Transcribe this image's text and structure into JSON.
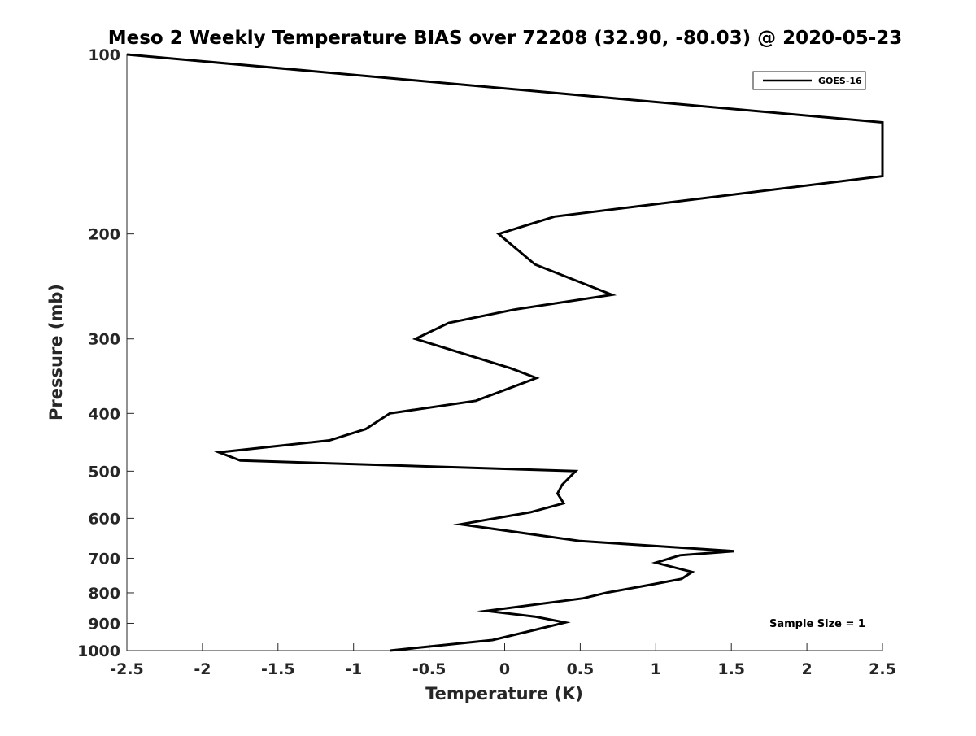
{
  "chart_data": {
    "type": "line",
    "title": "Meso 2 Weekly Temperature BIAS over 72208 (32.90, -80.03) @ 2020-05-23",
    "xlabel": "Temperature (K)",
    "ylabel": "Pressure (mb)",
    "xlim": [
      -2.5,
      2.5
    ],
    "ylim": [
      100,
      1000
    ],
    "yscale": "log",
    "y_reversed": true,
    "xticks": [
      -2.5,
      -2,
      -1.5,
      -1,
      -0.5,
      0,
      0.5,
      1,
      1.5,
      2,
      2.5
    ],
    "xtick_labels": [
      "-2.5",
      "-2",
      "-1.5",
      "-1",
      "-0.5",
      "0",
      "0.5",
      "1",
      "1.5",
      "2",
      "2.5"
    ],
    "yticks": [
      100,
      200,
      300,
      400,
      500,
      600,
      700,
      800,
      900,
      1000
    ],
    "ytick_labels": [
      "100",
      "200",
      "300",
      "400",
      "500",
      "600",
      "700",
      "800",
      "900",
      "1000"
    ],
    "grid": false,
    "legend_position": "top-right",
    "annotation": "Sample Size = 1",
    "series": [
      {
        "name": "GOES-16",
        "color": "#000000",
        "x": [
          -2.5,
          2.5,
          2.5,
          0.33,
          -0.04,
          0.2,
          0.71,
          0.06,
          -0.37,
          -0.59,
          0.04,
          0.21,
          -0.19,
          -0.76,
          -0.92,
          -1.16,
          -1.89,
          -1.75,
          0.47,
          0.38,
          0.35,
          0.39,
          0.17,
          -0.29,
          0.5,
          1.52,
          1.16,
          1.0,
          1.24,
          1.17,
          0.97,
          0.68,
          0.52,
          -0.12,
          0.2,
          0.4,
          0.2,
          -0.08,
          -0.76
        ],
        "y": [
          100,
          130,
          160,
          187,
          200,
          225,
          253,
          268,
          282,
          300,
          336,
          349,
          381,
          400,
          425,
          444,
          465,
          480,
          500,
          527,
          545,
          566,
          586,
          614,
          655,
          681,
          692,
          712,
          738,
          758,
          775,
          799,
          817,
          858,
          877,
          897,
          923,
          960,
          1000
        ]
      }
    ]
  }
}
